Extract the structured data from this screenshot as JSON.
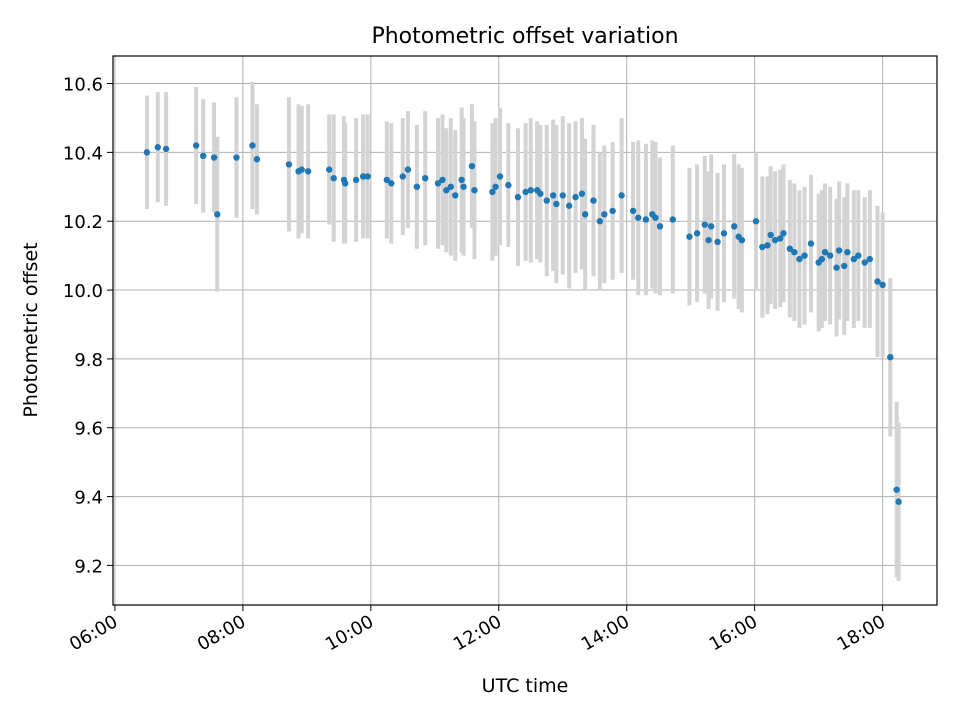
{
  "chart_data": {
    "type": "scatter",
    "title": "Photometric offset variation",
    "xlabel": "UTC time",
    "ylabel": "Photometric offset",
    "x_unit": "hours UTC",
    "xlim": [
      5.97,
      18.85
    ],
    "ylim": [
      9.085,
      10.68
    ],
    "xticks": [
      6,
      8,
      10,
      12,
      14,
      16,
      18
    ],
    "xtick_labels": [
      "06:00",
      "08:00",
      "10:00",
      "12:00",
      "14:00",
      "16:00",
      "18:00"
    ],
    "yticks": [
      9.2,
      9.4,
      9.6,
      9.8,
      10.0,
      10.2,
      10.4,
      10.6
    ],
    "ytick_labels": [
      "9.2",
      "9.4",
      "9.6",
      "9.8",
      "10.0",
      "10.2",
      "10.4",
      "10.6"
    ],
    "grid": true,
    "marker_color": "#1f77b4",
    "errorbar_color": "#d3d3d3",
    "points": [
      [
        6.5,
        10.4,
        0.165
      ],
      [
        6.67,
        10.415,
        0.16
      ],
      [
        6.8,
        10.41,
        0.165
      ],
      [
        7.27,
        10.42,
        0.17
      ],
      [
        7.38,
        10.39,
        0.165
      ],
      [
        7.55,
        10.385,
        0.16
      ],
      [
        7.6,
        10.22,
        0.225
      ],
      [
        7.9,
        10.385,
        0.175
      ],
      [
        8.15,
        10.42,
        0.185
      ],
      [
        8.22,
        10.38,
        0.16
      ],
      [
        8.72,
        10.365,
        0.195
      ],
      [
        8.87,
        10.345,
        0.195
      ],
      [
        8.92,
        10.35,
        0.185
      ],
      [
        9.02,
        10.345,
        0.195
      ],
      [
        9.35,
        10.35,
        0.16
      ],
      [
        9.42,
        10.325,
        0.185
      ],
      [
        9.58,
        10.32,
        0.185
      ],
      [
        9.6,
        10.31,
        0.175
      ],
      [
        9.77,
        10.32,
        0.18
      ],
      [
        9.88,
        10.33,
        0.18
      ],
      [
        9.95,
        10.33,
        0.18
      ],
      [
        10.25,
        10.32,
        0.17
      ],
      [
        10.32,
        10.31,
        0.175
      ],
      [
        10.5,
        10.33,
        0.17
      ],
      [
        10.58,
        10.35,
        0.17
      ],
      [
        10.72,
        10.3,
        0.18
      ],
      [
        10.85,
        10.325,
        0.195
      ],
      [
        11.05,
        10.31,
        0.19
      ],
      [
        11.12,
        10.32,
        0.19
      ],
      [
        11.18,
        10.29,
        0.18
      ],
      [
        11.25,
        10.3,
        0.2
      ],
      [
        11.32,
        10.275,
        0.19
      ],
      [
        11.42,
        10.32,
        0.21
      ],
      [
        11.45,
        10.3,
        0.2
      ],
      [
        11.58,
        10.36,
        0.18
      ],
      [
        11.62,
        10.29,
        0.2
      ],
      [
        11.9,
        10.285,
        0.2
      ],
      [
        11.95,
        10.3,
        0.2
      ],
      [
        12.02,
        10.33,
        0.2
      ],
      [
        12.15,
        10.305,
        0.18
      ],
      [
        12.3,
        10.27,
        0.2
      ],
      [
        12.42,
        10.285,
        0.2
      ],
      [
        12.5,
        10.29,
        0.21
      ],
      [
        12.6,
        10.29,
        0.2
      ],
      [
        12.65,
        10.28,
        0.2
      ],
      [
        12.75,
        10.26,
        0.22
      ],
      [
        12.85,
        10.275,
        0.22
      ],
      [
        12.9,
        10.25,
        0.23
      ],
      [
        13.0,
        10.275,
        0.23
      ],
      [
        13.1,
        10.245,
        0.24
      ],
      [
        13.2,
        10.27,
        0.22
      ],
      [
        13.3,
        10.28,
        0.22
      ],
      [
        13.35,
        10.22,
        0.22
      ],
      [
        13.48,
        10.26,
        0.22
      ],
      [
        13.58,
        10.2,
        0.2
      ],
      [
        13.65,
        10.22,
        0.2
      ],
      [
        13.78,
        10.23,
        0.2
      ],
      [
        13.92,
        10.275,
        0.225
      ],
      [
        14.1,
        10.23,
        0.2
      ],
      [
        14.18,
        10.21,
        0.225
      ],
      [
        14.3,
        10.205,
        0.22
      ],
      [
        14.4,
        10.22,
        0.215
      ],
      [
        14.45,
        10.21,
        0.22
      ],
      [
        14.52,
        10.185,
        0.2
      ],
      [
        14.72,
        10.205,
        0.215
      ],
      [
        14.98,
        10.155,
        0.2
      ],
      [
        15.1,
        10.165,
        0.2
      ],
      [
        15.22,
        10.19,
        0.2
      ],
      [
        15.28,
        10.145,
        0.2
      ],
      [
        15.32,
        10.185,
        0.21
      ],
      [
        15.42,
        10.14,
        0.2
      ],
      [
        15.52,
        10.165,
        0.2
      ],
      [
        15.68,
        10.185,
        0.21
      ],
      [
        15.75,
        10.155,
        0.21
      ],
      [
        15.8,
        10.145,
        0.21
      ],
      [
        16.02,
        10.2,
        0.2
      ],
      [
        16.12,
        10.125,
        0.205
      ],
      [
        16.2,
        10.13,
        0.2
      ],
      [
        16.25,
        10.16,
        0.2
      ],
      [
        16.32,
        10.145,
        0.2
      ],
      [
        16.4,
        10.15,
        0.2
      ],
      [
        16.45,
        10.165,
        0.2
      ],
      [
        16.55,
        10.12,
        0.2
      ],
      [
        16.62,
        10.11,
        0.2
      ],
      [
        16.7,
        10.09,
        0.2
      ],
      [
        16.78,
        10.1,
        0.2
      ],
      [
        16.88,
        10.135,
        0.2
      ],
      [
        17.0,
        10.08,
        0.2
      ],
      [
        17.05,
        10.09,
        0.2
      ],
      [
        17.1,
        10.11,
        0.2
      ],
      [
        17.18,
        10.1,
        0.2
      ],
      [
        17.28,
        10.065,
        0.2
      ],
      [
        17.32,
        10.115,
        0.2
      ],
      [
        17.4,
        10.07,
        0.2
      ],
      [
        17.45,
        10.11,
        0.2
      ],
      [
        17.55,
        10.09,
        0.2
      ],
      [
        17.62,
        10.1,
        0.19
      ],
      [
        17.72,
        10.08,
        0.19
      ],
      [
        17.8,
        10.09,
        0.2
      ],
      [
        17.92,
        10.025,
        0.22
      ],
      [
        18.0,
        10.015,
        0.21
      ],
      [
        18.12,
        9.805,
        0.23
      ],
      [
        18.22,
        9.42,
        0.255
      ],
      [
        18.25,
        9.385,
        0.23
      ]
    ]
  }
}
